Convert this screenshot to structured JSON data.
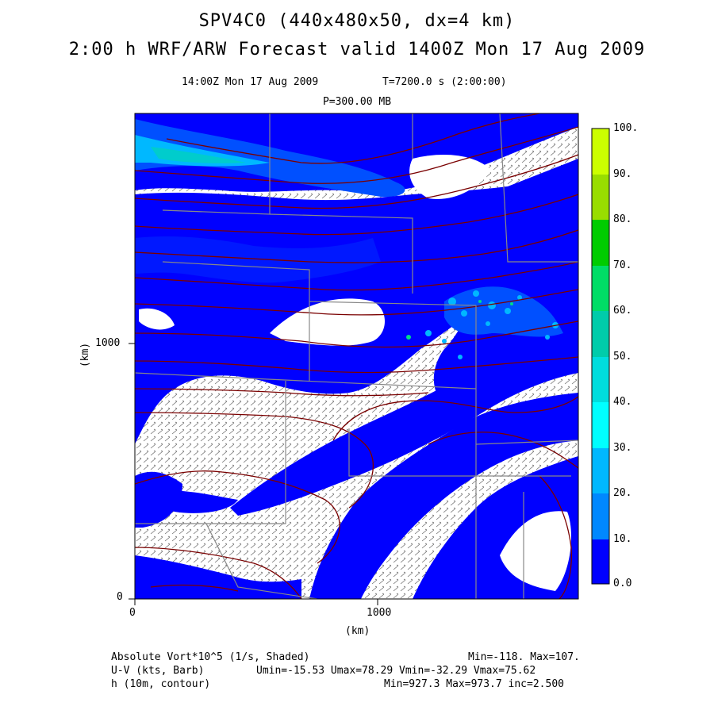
{
  "title": {
    "line1": "SPV4C0 (440x480x50, dx=4 km)",
    "line2": "2:00 h WRF/ARW Forecast valid 1400Z Mon 17 Aug 2009"
  },
  "subtitle": {
    "time": "14:00Z Mon 17 Aug 2009",
    "tstep": "T=7200.0 s (2:00:00)",
    "level": "P=300.00 MB"
  },
  "axes": {
    "x_ticks": [
      "0",
      "1000"
    ],
    "y_ticks": [
      "0",
      "1000"
    ],
    "x_label": "(km)",
    "y_label": "(km)"
  },
  "colorbar": {
    "labels": [
      "100.",
      "90.",
      "80.",
      "70.",
      "60.",
      "50.",
      "40.",
      "30.",
      "20.",
      "10.",
      "0.0"
    ],
    "colors": [
      "#ccff00",
      "#99dd00",
      "#00cc00",
      "#00dd66",
      "#00ccaa",
      "#00dddd",
      "#00ffff",
      "#00b8ff",
      "#0088ff",
      "#0050ff",
      "#0000ff"
    ]
  },
  "footer": {
    "field1_name": "Absolute Vort*10^5 (1/s, Shaded)",
    "field1_stats": "Min=-118. Max=107.",
    "field2_name": "U-V (kts, Barb)",
    "field2_stats": "Umin=-15.53 Umax=78.29 Vmin=-32.29 Vmax=75.62",
    "field3_name": "h (10m, contour)",
    "field3_stats": "Min=927.3 Max=973.7 inc=2.500"
  },
  "colors": {
    "vort_main": "#0000ff",
    "vort_mid": "#0050ff",
    "vort_high": "#00b8ff",
    "contour": "#7a0000",
    "borders": "#888888",
    "barbs": "#333333"
  }
}
